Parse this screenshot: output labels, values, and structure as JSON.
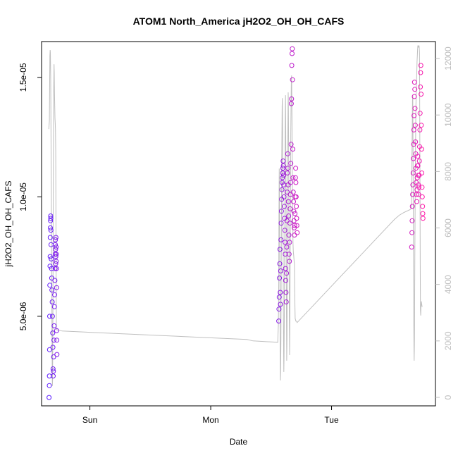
{
  "chart_data": {
    "type": "scatter",
    "title": "ATOM1 North_America jH2O2_OH_OH_CAFS",
    "xlabel": "Date",
    "ylabel": "jH2O2_OH_OH_CAFS",
    "x_ticks": [
      "Sun",
      "Mon",
      "Tue"
    ],
    "y_ticks": [
      "5.0e-06",
      "1.0e-05",
      "1.5e-05"
    ],
    "y_tick_values": [
      5e-06,
      1e-05,
      1.5e-05
    ],
    "y2_ticks": [
      "0",
      "2000",
      "4000",
      "6000",
      "8000",
      "10000",
      "12000"
    ],
    "y2_tick_values": [
      0,
      2000,
      4000,
      6000,
      8000,
      10000,
      12000
    ],
    "ylim": [
      1.25e-06,
      1.65e-05
    ],
    "y2lim": [
      -300,
      12600
    ],
    "xlim_days": [
      -0.4,
      2.86
    ],
    "grid": false,
    "colors": {
      "scatter_start": "#5a1aff",
      "scatter_end": "#ff1aa8",
      "line": "#bfbfbf",
      "right_axis": "#bdbdbd"
    },
    "scatter_series": {
      "name": "jH2O2_OH_OH_CAFS",
      "color_gradient": [
        "#5a1aff",
        "#ff1aa8"
      ],
      "points": [
        [
          -0.338,
          1.6e-06
        ],
        [
          -0.336,
          2.1e-06
        ],
        [
          -0.335,
          2.5e-06
        ],
        [
          -0.334,
          3.6e-06
        ],
        [
          -0.333,
          5e-06
        ],
        [
          -0.332,
          6.3e-06
        ],
        [
          -0.33,
          7.1e-06
        ],
        [
          -0.329,
          7.5e-06
        ],
        [
          -0.328,
          8.3e-06
        ],
        [
          -0.327,
          8.7e-06
        ],
        [
          -0.326,
          9e-06
        ],
        [
          -0.325,
          9.2e-06
        ],
        [
          -0.324,
          9.1e-06
        ],
        [
          -0.323,
          8.6e-06
        ],
        [
          -0.322,
          8e-06
        ],
        [
          -0.32,
          7.4e-06
        ],
        [
          -0.318,
          7e-06
        ],
        [
          -0.316,
          6.6e-06
        ],
        [
          -0.314,
          6.1e-06
        ],
        [
          -0.312,
          5.6e-06
        ],
        [
          -0.31,
          5e-06
        ],
        [
          -0.308,
          4.3e-06
        ],
        [
          -0.306,
          3.7e-06
        ],
        [
          -0.305,
          2.8e-06
        ],
        [
          -0.304,
          2.5e-06
        ],
        [
          -0.302,
          2.7e-06
        ],
        [
          -0.3,
          3.3e-06
        ],
        [
          -0.298,
          4e-06
        ],
        [
          -0.296,
          4.6e-06
        ],
        [
          -0.294,
          5.4e-06
        ],
        [
          -0.292,
          5.9e-06
        ],
        [
          -0.29,
          6.5e-06
        ],
        [
          -0.288,
          7e-06
        ],
        [
          -0.287,
          7.6e-06
        ],
        [
          -0.286,
          8e-06
        ],
        [
          -0.285,
          8.2e-06
        ],
        [
          -0.284,
          7.8e-06
        ],
        [
          -0.283,
          7.2e-06
        ],
        [
          -0.282,
          7.5e-06
        ],
        [
          -0.281,
          8.3e-06
        ],
        [
          -0.28,
          7.9e-06
        ],
        [
          -0.279,
          7.3e-06
        ],
        [
          -0.278,
          7.6e-06
        ],
        [
          -0.277,
          7e-06
        ],
        [
          -0.276,
          6.2e-06
        ],
        [
          -0.275,
          4.4e-06
        ],
        [
          -0.274,
          4e-06
        ],
        [
          -0.273,
          3.4e-06
        ],
        [
          1.563,
          4.8e-06
        ],
        [
          1.565,
          5.3e-06
        ],
        [
          1.567,
          5.8e-06
        ],
        [
          1.569,
          6.6e-06
        ],
        [
          1.571,
          7.2e-06
        ],
        [
          1.573,
          7.8e-06
        ],
        [
          1.575,
          6e-06
        ],
        [
          1.577,
          5.5e-06
        ],
        [
          1.579,
          6.9e-06
        ],
        [
          1.581,
          8.2e-06
        ],
        [
          1.583,
          8.9e-06
        ],
        [
          1.585,
          9.4e-06
        ],
        [
          1.587,
          9.9e-06
        ],
        [
          1.589,
          1.03e-05
        ],
        [
          1.591,
          1.06e-05
        ],
        [
          1.593,
          1.08e-05
        ],
        [
          1.595,
          1.1e-05
        ],
        [
          1.597,
          1.12e-05
        ],
        [
          1.599,
          1.15e-05
        ],
        [
          1.601,
          1.13e-05
        ],
        [
          1.603,
          1.09e-05
        ],
        [
          1.605,
          1.05e-05
        ],
        [
          1.607,
          1e-05
        ],
        [
          1.609,
          9.6e-06
        ],
        [
          1.611,
          9.1e-06
        ],
        [
          1.613,
          8.6e-06
        ],
        [
          1.615,
          8.1e-06
        ],
        [
          1.617,
          7.6e-06
        ],
        [
          1.619,
          7e-06
        ],
        [
          1.621,
          6.5e-06
        ],
        [
          1.623,
          6e-06
        ],
        [
          1.625,
          5.6e-06
        ],
        [
          1.627,
          6.8e-06
        ],
        [
          1.629,
          7.9e-06
        ],
        [
          1.631,
          9e-06
        ],
        [
          1.633,
          1.02e-05
        ],
        [
          1.635,
          1.1e-05
        ],
        [
          1.637,
          1.18e-05
        ],
        [
          1.639,
          1.12e-05
        ],
        [
          1.641,
          1.05e-05
        ],
        [
          1.643,
          9.8e-06
        ],
        [
          1.645,
          9.2e-06
        ],
        [
          1.647,
          8.4e-06
        ],
        [
          1.649,
          7.6e-06
        ],
        [
          1.651,
          7.3e-06
        ],
        [
          1.653,
          8.1e-06
        ],
        [
          1.655,
          8.9e-06
        ],
        [
          1.657,
          9.5e-06
        ],
        [
          1.659,
          1.01e-05
        ],
        [
          1.661,
          1.06e-05
        ],
        [
          1.663,
          1.14e-05
        ],
        [
          1.665,
          1.22e-05
        ],
        [
          1.667,
          1.39e-05
        ],
        [
          1.669,
          1.41e-05
        ],
        [
          1.671,
          1.55e-05
        ],
        [
          1.673,
          1.6e-05
        ],
        [
          1.675,
          1.62e-05
        ],
        [
          1.677,
          1.49e-05
        ],
        [
          1.679,
          1.2e-05
        ],
        [
          1.681,
          1.08e-05
        ],
        [
          1.683,
          1.02e-05
        ],
        [
          1.685,
          9.8e-06
        ],
        [
          1.687,
          9.4e-06
        ],
        [
          1.689,
          9e-06
        ],
        [
          1.691,
          8.7e-06
        ],
        [
          1.693,
          8.4e-06
        ],
        [
          1.695,
          8.8e-06
        ],
        [
          1.697,
          9.3e-06
        ],
        [
          1.699,
          1e-05
        ],
        [
          1.701,
          1.08e-05
        ],
        [
          1.703,
          1.12e-05
        ],
        [
          1.705,
          1.06e-05
        ],
        [
          1.707,
          1e-05
        ],
        [
          1.709,
          9.6e-06
        ],
        [
          1.711,
          9.1e-06
        ],
        [
          1.713,
          8.8e-06
        ],
        [
          1.715,
          8.5e-06
        ],
        [
          2.663,
          7.9e-06
        ],
        [
          2.665,
          8.5e-06
        ],
        [
          2.667,
          9e-06
        ],
        [
          2.669,
          9.6e-06
        ],
        [
          2.671,
          1.01e-05
        ],
        [
          2.673,
          1.05e-05
        ],
        [
          2.675,
          1.1e-05
        ],
        [
          2.677,
          1.16e-05
        ],
        [
          2.679,
          1.22e-05
        ],
        [
          2.681,
          1.28e-05
        ],
        [
          2.683,
          1.34e-05
        ],
        [
          2.685,
          1.42e-05
        ],
        [
          2.687,
          1.48e-05
        ],
        [
          2.689,
          1.45e-05
        ],
        [
          2.691,
          1.37e-05
        ],
        [
          2.693,
          1.3e-05
        ],
        [
          2.695,
          1.23e-05
        ],
        [
          2.697,
          1.18e-05
        ],
        [
          2.699,
          1.12e-05
        ],
        [
          2.701,
          1.06e-05
        ],
        [
          2.703,
          1.01e-05
        ],
        [
          2.705,
          9.8e-06
        ],
        [
          2.707,
          1.03e-05
        ],
        [
          2.709,
          1.08e-05
        ],
        [
          2.711,
          1.13e-05
        ],
        [
          2.713,
          1.17e-05
        ],
        [
          2.715,
          1.13e-05
        ],
        [
          2.717,
          1.09e-05
        ],
        [
          2.719,
          1.05e-05
        ],
        [
          2.721,
          1.01e-05
        ],
        [
          2.723,
          1.04e-05
        ],
        [
          2.725,
          1.09e-05
        ],
        [
          2.727,
          1.15e-05
        ],
        [
          2.729,
          1.21e-05
        ],
        [
          2.731,
          1.28e-05
        ],
        [
          2.733,
          1.35e-05
        ],
        [
          2.735,
          1.46e-05
        ],
        [
          2.737,
          1.52e-05
        ],
        [
          2.739,
          1.55e-05
        ],
        [
          2.741,
          1.43e-05
        ],
        [
          2.743,
          1.3e-05
        ],
        [
          2.745,
          1.2e-05
        ],
        [
          2.747,
          1.1e-05
        ],
        [
          2.749,
          1.04e-05
        ],
        [
          2.751,
          1e-05
        ],
        [
          2.753,
          9.6e-06
        ],
        [
          2.755,
          9.3e-06
        ],
        [
          2.757,
          9.1e-06
        ]
      ]
    },
    "line_series": {
      "axis": "right",
      "color": "#bfbfbf",
      "points": [
        [
          -0.34,
          9500
        ],
        [
          -0.335,
          9800
        ],
        [
          -0.333,
          11200
        ],
        [
          -0.331,
          12100
        ],
        [
          -0.329,
          12300
        ],
        [
          -0.327,
          12200
        ],
        [
          -0.325,
          11400
        ],
        [
          -0.323,
          10200
        ],
        [
          -0.321,
          8800
        ],
        [
          -0.319,
          7200
        ],
        [
          -0.317,
          5300
        ],
        [
          -0.315,
          3200
        ],
        [
          -0.313,
          1800
        ],
        [
          -0.311,
          400
        ],
        [
          -0.309,
          600
        ],
        [
          -0.307,
          2100
        ],
        [
          -0.305,
          4900
        ],
        [
          -0.303,
          7600
        ],
        [
          -0.301,
          9600
        ],
        [
          -0.299,
          11000
        ],
        [
          -0.297,
          11800
        ],
        [
          -0.295,
          11500
        ],
        [
          -0.293,
          10800
        ],
        [
          -0.291,
          10300
        ],
        [
          -0.289,
          9900
        ],
        [
          -0.287,
          9700
        ],
        [
          -0.285,
          9500
        ],
        [
          -0.283,
          8700
        ],
        [
          -0.281,
          6400
        ],
        [
          -0.279,
          4200
        ],
        [
          -0.277,
          2400
        ],
        [
          -0.23,
          2350
        ],
        [
          1.3,
          2050
        ],
        [
          1.35,
          2000
        ],
        [
          1.555,
          1950
        ],
        [
          1.56,
          2600
        ],
        [
          1.563,
          4100
        ],
        [
          1.565,
          6400
        ],
        [
          1.567,
          8100
        ],
        [
          1.569,
          7200
        ],
        [
          1.571,
          5200
        ],
        [
          1.573,
          3600
        ],
        [
          1.575,
          1700
        ],
        [
          1.577,
          600
        ],
        [
          1.579,
          900
        ],
        [
          1.581,
          2100
        ],
        [
          1.583,
          4100
        ],
        [
          1.585,
          6200
        ],
        [
          1.587,
          7900
        ],
        [
          1.589,
          9300
        ],
        [
          1.591,
          10300
        ],
        [
          1.593,
          10600
        ],
        [
          1.595,
          9400
        ],
        [
          1.597,
          7600
        ],
        [
          1.599,
          5400
        ],
        [
          1.601,
          3400
        ],
        [
          1.603,
          1700
        ],
        [
          1.605,
          900
        ],
        [
          1.607,
          1400
        ],
        [
          1.609,
          2900
        ],
        [
          1.611,
          4700
        ],
        [
          1.613,
          6600
        ],
        [
          1.615,
          8400
        ],
        [
          1.617,
          9900
        ],
        [
          1.619,
          10700
        ],
        [
          1.621,
          9600
        ],
        [
          1.623,
          7400
        ],
        [
          1.625,
          4800
        ],
        [
          1.627,
          2800
        ],
        [
          1.629,
          1300
        ],
        [
          1.631,
          2100
        ],
        [
          1.633,
          3800
        ],
        [
          1.635,
          5900
        ],
        [
          1.637,
          7800
        ],
        [
          1.639,
          9500
        ],
        [
          1.641,
          10800
        ],
        [
          1.643,
          10300
        ],
        [
          1.645,
          8600
        ],
        [
          1.647,
          6500
        ],
        [
          1.649,
          4500
        ],
        [
          1.651,
          2700
        ],
        [
          1.653,
          1500
        ],
        [
          1.655,
          2600
        ],
        [
          1.657,
          4300
        ],
        [
          1.659,
          6200
        ],
        [
          1.661,
          7900
        ],
        [
          1.663,
          9300
        ],
        [
          1.665,
          10400
        ],
        [
          1.667,
          11100
        ],
        [
          1.669,
          11400
        ],
        [
          1.671,
          10800
        ],
        [
          1.673,
          9600
        ],
        [
          1.675,
          8100
        ],
        [
          1.677,
          7100
        ],
        [
          1.679,
          6300
        ],
        [
          1.681,
          5500
        ],
        [
          1.683,
          5200
        ],
        [
          1.685,
          5100
        ],
        [
          1.687,
          5000
        ],
        [
          1.689,
          4900
        ],
        [
          1.691,
          4800
        ],
        [
          1.693,
          4700
        ],
        [
          1.695,
          3900
        ],
        [
          1.697,
          3200
        ],
        [
          1.699,
          2800
        ],
        [
          1.705,
          2700
        ],
        [
          1.71,
          2700
        ],
        [
          1.715,
          2650
        ],
        [
          2.52,
          6300
        ],
        [
          2.56,
          6450
        ],
        [
          2.6,
          6550
        ],
        [
          2.65,
          6650
        ],
        [
          2.66,
          6700
        ],
        [
          2.662,
          7000
        ],
        [
          2.664,
          7700
        ],
        [
          2.666,
          8600
        ],
        [
          2.668,
          9600
        ],
        [
          2.67,
          10500
        ],
        [
          2.672,
          10700
        ],
        [
          2.674,
          9200
        ],
        [
          2.676,
          7200
        ],
        [
          2.678,
          5100
        ],
        [
          2.68,
          3300
        ],
        [
          2.682,
          1800
        ],
        [
          2.684,
          1300
        ],
        [
          2.686,
          2100
        ],
        [
          2.688,
          3600
        ],
        [
          2.69,
          5300
        ],
        [
          2.692,
          6900
        ],
        [
          2.694,
          8300
        ],
        [
          2.696,
          9400
        ],
        [
          2.698,
          10200
        ],
        [
          2.7,
          10700
        ],
        [
          2.702,
          11000
        ],
        [
          2.704,
          11300
        ],
        [
          2.706,
          11600
        ],
        [
          2.708,
          11900
        ],
        [
          2.71,
          12100
        ],
        [
          2.712,
          12300
        ],
        [
          2.714,
          12450
        ],
        [
          2.716,
          12450
        ],
        [
          2.718,
          12400
        ],
        [
          2.72,
          12400
        ],
        [
          2.722,
          12450
        ],
        [
          2.724,
          12450
        ],
        [
          2.726,
          12400
        ],
        [
          2.728,
          12200
        ],
        [
          2.73,
          10000
        ],
        [
          2.732,
          7200
        ],
        [
          2.734,
          4700
        ],
        [
          2.736,
          3100
        ],
        [
          2.738,
          2900
        ],
        [
          2.74,
          3200
        ],
        [
          2.742,
          3300
        ],
        [
          2.744,
          3400
        ],
        [
          2.746,
          3300
        ],
        [
          2.75,
          3200
        ]
      ]
    }
  }
}
